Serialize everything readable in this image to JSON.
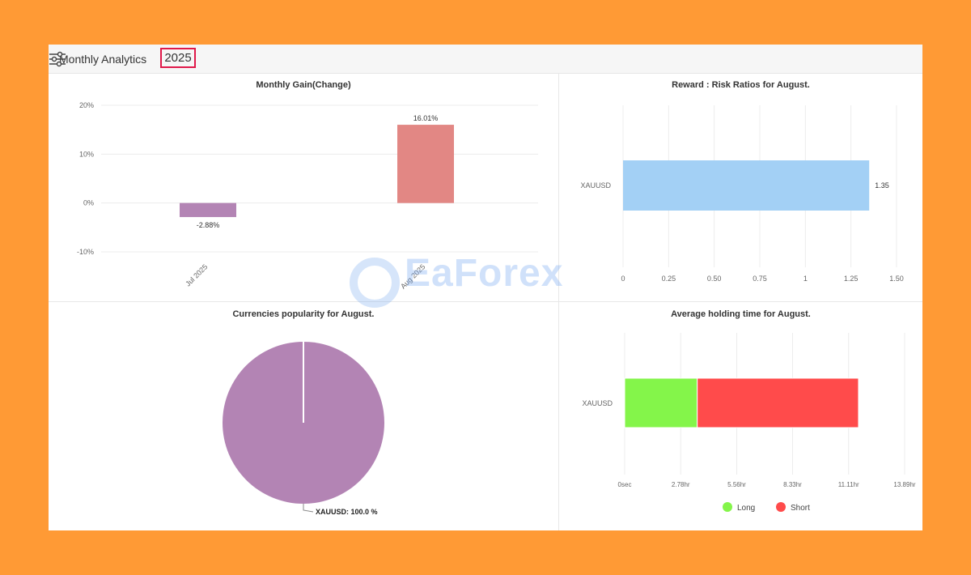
{
  "header": {
    "title": "Monthly Analytics",
    "year": "2025",
    "settings_icon": "sliders-icon"
  },
  "watermark": "EaForex",
  "colors": {
    "background": "#FF9A35",
    "year_border": "#e0194a"
  },
  "chart_data": [
    {
      "type": "bar",
      "title": "Monthly Gain(Change)",
      "categories": [
        "Jul 2025",
        "Aug 2025"
      ],
      "values": [
        -2.88,
        16.01
      ],
      "data_labels": [
        "-2.88%",
        "16.01%"
      ],
      "colors": [
        "#b384b4",
        "#e28784"
      ],
      "yticks": [
        "20%",
        "10%",
        "0%",
        "-10%"
      ],
      "ytick_values": [
        20,
        10,
        0,
        -10
      ],
      "ylim": [
        -10,
        20
      ],
      "grid": true
    },
    {
      "type": "bar",
      "orientation": "horizontal",
      "title": "Reward : Risk Ratios for August.",
      "categories": [
        "XAUUSD"
      ],
      "values": [
        1.35
      ],
      "data_labels": [
        "1.35"
      ],
      "colors": [
        "#a3d0f5"
      ],
      "xticks": [
        "0",
        "0.25",
        "0.50",
        "0.75",
        "1",
        "1.25",
        "1.50"
      ],
      "xtick_values": [
        0,
        0.25,
        0.5,
        0.75,
        1,
        1.25,
        1.5
      ],
      "xlim": [
        0,
        1.5
      ],
      "grid": true
    },
    {
      "type": "pie",
      "title": "Currencies popularity for August.",
      "slices": [
        {
          "label": "XAUUSD",
          "value": 100.0,
          "color": "#b384b4"
        }
      ],
      "data_labels": [
        "XAUUSD: 100.0 %"
      ]
    },
    {
      "type": "bar",
      "orientation": "horizontal",
      "stacked": true,
      "title": "Average holding time for August.",
      "categories": [
        "XAUUSD"
      ],
      "series": [
        {
          "name": "Long",
          "values": [
            3.6
          ],
          "color": "#84f54a"
        },
        {
          "name": "Short",
          "values": [
            8.0
          ],
          "color": "#ff4b4b"
        }
      ],
      "unit": "hr",
      "xticks": [
        "0sec",
        "2.78hr",
        "5.56hr",
        "8.33hr",
        "11.11hr",
        "13.89hr"
      ],
      "xtick_values": [
        0,
        2.78,
        5.56,
        8.33,
        11.11,
        13.89
      ],
      "xlim": [
        0,
        13.89
      ],
      "legend": "bottom",
      "grid": true
    }
  ]
}
